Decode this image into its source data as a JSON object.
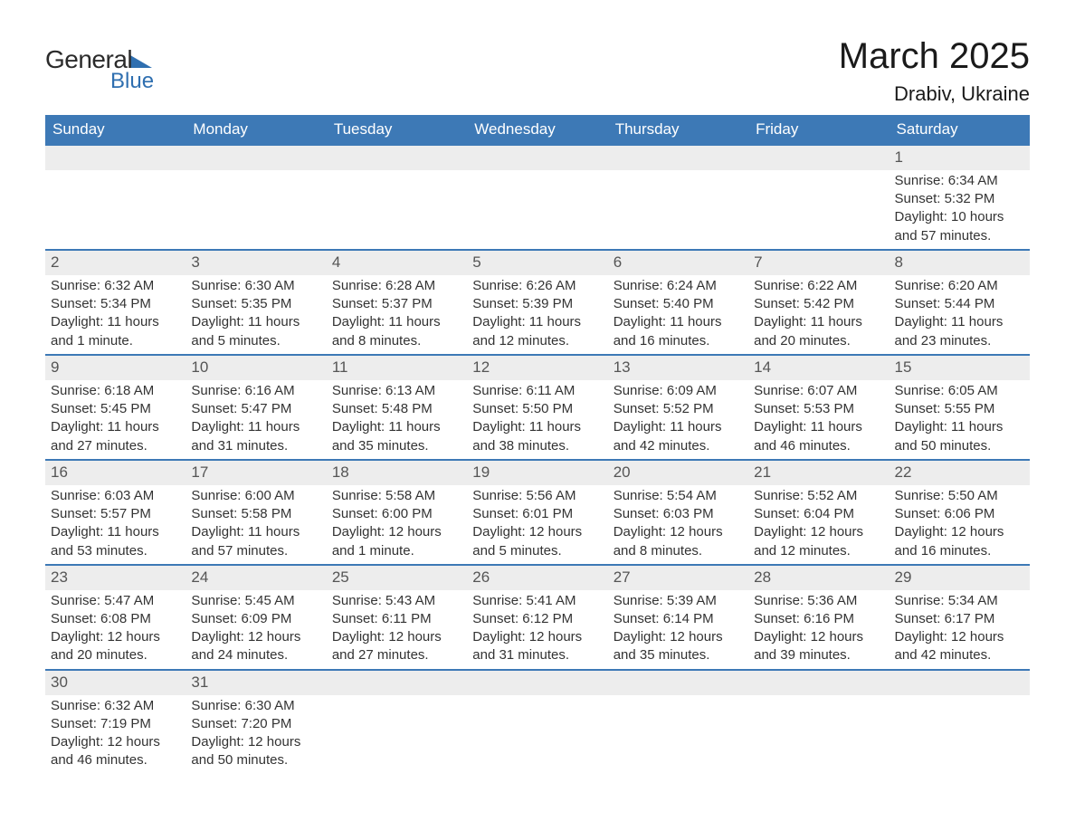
{
  "logo": {
    "line1": "General",
    "line2": "Blue"
  },
  "title": "March 2025",
  "location": "Drabiv, Ukraine",
  "colors": {
    "header_bg": "#3d79b6",
    "header_text": "#ffffff",
    "daynum_bg": "#ededed",
    "row_divider": "#3d79b6",
    "logo_accent": "#2f6fb0",
    "body_text": "#333333"
  },
  "daysOfWeek": [
    "Sunday",
    "Monday",
    "Tuesday",
    "Wednesday",
    "Thursday",
    "Friday",
    "Saturday"
  ],
  "weeks": [
    [
      null,
      null,
      null,
      null,
      null,
      null,
      {
        "n": "1",
        "sr": "Sunrise: 6:34 AM",
        "ss": "Sunset: 5:32 PM",
        "d1": "Daylight: 10 hours",
        "d2": "and 57 minutes."
      }
    ],
    [
      {
        "n": "2",
        "sr": "Sunrise: 6:32 AM",
        "ss": "Sunset: 5:34 PM",
        "d1": "Daylight: 11 hours",
        "d2": "and 1 minute."
      },
      {
        "n": "3",
        "sr": "Sunrise: 6:30 AM",
        "ss": "Sunset: 5:35 PM",
        "d1": "Daylight: 11 hours",
        "d2": "and 5 minutes."
      },
      {
        "n": "4",
        "sr": "Sunrise: 6:28 AM",
        "ss": "Sunset: 5:37 PM",
        "d1": "Daylight: 11 hours",
        "d2": "and 8 minutes."
      },
      {
        "n": "5",
        "sr": "Sunrise: 6:26 AM",
        "ss": "Sunset: 5:39 PM",
        "d1": "Daylight: 11 hours",
        "d2": "and 12 minutes."
      },
      {
        "n": "6",
        "sr": "Sunrise: 6:24 AM",
        "ss": "Sunset: 5:40 PM",
        "d1": "Daylight: 11 hours",
        "d2": "and 16 minutes."
      },
      {
        "n": "7",
        "sr": "Sunrise: 6:22 AM",
        "ss": "Sunset: 5:42 PM",
        "d1": "Daylight: 11 hours",
        "d2": "and 20 minutes."
      },
      {
        "n": "8",
        "sr": "Sunrise: 6:20 AM",
        "ss": "Sunset: 5:44 PM",
        "d1": "Daylight: 11 hours",
        "d2": "and 23 minutes."
      }
    ],
    [
      {
        "n": "9",
        "sr": "Sunrise: 6:18 AM",
        "ss": "Sunset: 5:45 PM",
        "d1": "Daylight: 11 hours",
        "d2": "and 27 minutes."
      },
      {
        "n": "10",
        "sr": "Sunrise: 6:16 AM",
        "ss": "Sunset: 5:47 PM",
        "d1": "Daylight: 11 hours",
        "d2": "and 31 minutes."
      },
      {
        "n": "11",
        "sr": "Sunrise: 6:13 AM",
        "ss": "Sunset: 5:48 PM",
        "d1": "Daylight: 11 hours",
        "d2": "and 35 minutes."
      },
      {
        "n": "12",
        "sr": "Sunrise: 6:11 AM",
        "ss": "Sunset: 5:50 PM",
        "d1": "Daylight: 11 hours",
        "d2": "and 38 minutes."
      },
      {
        "n": "13",
        "sr": "Sunrise: 6:09 AM",
        "ss": "Sunset: 5:52 PM",
        "d1": "Daylight: 11 hours",
        "d2": "and 42 minutes."
      },
      {
        "n": "14",
        "sr": "Sunrise: 6:07 AM",
        "ss": "Sunset: 5:53 PM",
        "d1": "Daylight: 11 hours",
        "d2": "and 46 minutes."
      },
      {
        "n": "15",
        "sr": "Sunrise: 6:05 AM",
        "ss": "Sunset: 5:55 PM",
        "d1": "Daylight: 11 hours",
        "d2": "and 50 minutes."
      }
    ],
    [
      {
        "n": "16",
        "sr": "Sunrise: 6:03 AM",
        "ss": "Sunset: 5:57 PM",
        "d1": "Daylight: 11 hours",
        "d2": "and 53 minutes."
      },
      {
        "n": "17",
        "sr": "Sunrise: 6:00 AM",
        "ss": "Sunset: 5:58 PM",
        "d1": "Daylight: 11 hours",
        "d2": "and 57 minutes."
      },
      {
        "n": "18",
        "sr": "Sunrise: 5:58 AM",
        "ss": "Sunset: 6:00 PM",
        "d1": "Daylight: 12 hours",
        "d2": "and 1 minute."
      },
      {
        "n": "19",
        "sr": "Sunrise: 5:56 AM",
        "ss": "Sunset: 6:01 PM",
        "d1": "Daylight: 12 hours",
        "d2": "and 5 minutes."
      },
      {
        "n": "20",
        "sr": "Sunrise: 5:54 AM",
        "ss": "Sunset: 6:03 PM",
        "d1": "Daylight: 12 hours",
        "d2": "and 8 minutes."
      },
      {
        "n": "21",
        "sr": "Sunrise: 5:52 AM",
        "ss": "Sunset: 6:04 PM",
        "d1": "Daylight: 12 hours",
        "d2": "and 12 minutes."
      },
      {
        "n": "22",
        "sr": "Sunrise: 5:50 AM",
        "ss": "Sunset: 6:06 PM",
        "d1": "Daylight: 12 hours",
        "d2": "and 16 minutes."
      }
    ],
    [
      {
        "n": "23",
        "sr": "Sunrise: 5:47 AM",
        "ss": "Sunset: 6:08 PM",
        "d1": "Daylight: 12 hours",
        "d2": "and 20 minutes."
      },
      {
        "n": "24",
        "sr": "Sunrise: 5:45 AM",
        "ss": "Sunset: 6:09 PM",
        "d1": "Daylight: 12 hours",
        "d2": "and 24 minutes."
      },
      {
        "n": "25",
        "sr": "Sunrise: 5:43 AM",
        "ss": "Sunset: 6:11 PM",
        "d1": "Daylight: 12 hours",
        "d2": "and 27 minutes."
      },
      {
        "n": "26",
        "sr": "Sunrise: 5:41 AM",
        "ss": "Sunset: 6:12 PM",
        "d1": "Daylight: 12 hours",
        "d2": "and 31 minutes."
      },
      {
        "n": "27",
        "sr": "Sunrise: 5:39 AM",
        "ss": "Sunset: 6:14 PM",
        "d1": "Daylight: 12 hours",
        "d2": "and 35 minutes."
      },
      {
        "n": "28",
        "sr": "Sunrise: 5:36 AM",
        "ss": "Sunset: 6:16 PM",
        "d1": "Daylight: 12 hours",
        "d2": "and 39 minutes."
      },
      {
        "n": "29",
        "sr": "Sunrise: 5:34 AM",
        "ss": "Sunset: 6:17 PM",
        "d1": "Daylight: 12 hours",
        "d2": "and 42 minutes."
      }
    ],
    [
      {
        "n": "30",
        "sr": "Sunrise: 6:32 AM",
        "ss": "Sunset: 7:19 PM",
        "d1": "Daylight: 12 hours",
        "d2": "and 46 minutes."
      },
      {
        "n": "31",
        "sr": "Sunrise: 6:30 AM",
        "ss": "Sunset: 7:20 PM",
        "d1": "Daylight: 12 hours",
        "d2": "and 50 minutes."
      },
      null,
      null,
      null,
      null,
      null
    ]
  ]
}
